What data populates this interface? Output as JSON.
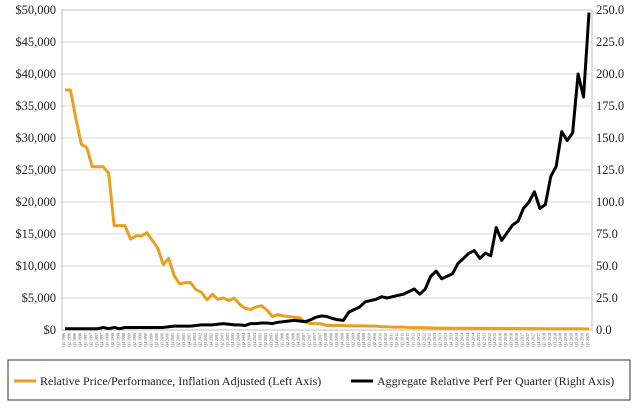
{
  "chart_data": {
    "type": "line",
    "title": "",
    "xlabel": "",
    "ylabel": "",
    "x_tick_labels": [
      "Q1 1996",
      "Q2 1996",
      "Q3 1996",
      "Q4 1996",
      "Q1 1997",
      "Q2 1997",
      "Q3 1997",
      "Q4 1997",
      "Q1 1998",
      "Q2 1998",
      "Q3 1998",
      "Q4 1998",
      "Q1 1999",
      "Q2 1999",
      "Q3 1999",
      "Q4 1999",
      "Q1 2000",
      "Q2 2000",
      "Q3 2000",
      "Q4 2000",
      "Q1 2001",
      "Q2 2001",
      "Q3 2001",
      "Q4 2001",
      "Q1 2002",
      "Q2 2002",
      "Q3 2002",
      "Q4 2002",
      "Q1 2003",
      "Q2 2003",
      "Q3 2003",
      "Q4 2003",
      "Q1 2004",
      "Q2 2004",
      "Q3 2004",
      "Q4 2004",
      "Q1 2005",
      "Q2 2005",
      "Q3 2005",
      "Q4 2005",
      "Q1 2006",
      "Q2 2006",
      "Q3 2006",
      "Q4 2006",
      "Q1 2007",
      "Q2 2007",
      "Q3 2007",
      "Q4 2007",
      "Q1 2008",
      "Q2 2008",
      "Q3 2008",
      "Q4 2008",
      "Q1 2009",
      "Q2 2009",
      "Q3 2009",
      "Q4 2009",
      "Q1 2010",
      "Q2 2010",
      "Q3 2010",
      "Q4 2010",
      "Q1 2011",
      "Q2 2011",
      "Q3 2011",
      "Q4 2011",
      "Q1 2012",
      "Q2 2012",
      "Q3 2012",
      "Q4 2012",
      "Q1 2013",
      "Q2 2013",
      "Q3 2013",
      "Q4 2013",
      "Q1 2014",
      "Q2 2014",
      "Q3 2014",
      "Q4 2014",
      "Q1 2015",
      "Q2 2015",
      "Q3 2015",
      "Q4 2015",
      "Q1 2016",
      "Q2 2016",
      "Q3 2016",
      "Q4 2016",
      "Q1 2017",
      "Q2 2017",
      "Q3 2017",
      "Q4 2017",
      "Q1 2018",
      "Q2 2018",
      "Q3 2018",
      "Q4 2018",
      "Q1 2019",
      "Q2 2019",
      "Q3 2019",
      "Q4 2019",
      "Q1 2020"
    ],
    "y_left": {
      "ylim": [
        0,
        50000
      ],
      "ticks": [
        0,
        5000,
        10000,
        15000,
        20000,
        25000,
        30000,
        35000,
        40000,
        45000,
        50000
      ],
      "tick_labels": [
        "$0",
        "$5,000",
        "$10,000",
        "$15,000",
        "$20,000",
        "$25,000",
        "$30,000",
        "$35,000",
        "$40,000",
        "$45,000",
        "$50,000"
      ]
    },
    "y_right": {
      "ylim": [
        0,
        250
      ],
      "ticks": [
        0,
        25,
        50,
        75,
        100,
        125,
        150,
        175,
        200,
        225,
        250
      ],
      "tick_labels": [
        "0.0",
        "25.0",
        "50.0",
        "75.0",
        "100.0",
        "125.0",
        "150.0",
        "175.0",
        "200.0",
        "225.0",
        "250.0"
      ]
    },
    "grid": true,
    "legend_position": "bottom",
    "series": [
      {
        "name": "Relative Price/Performance, Inflation Adjusted (Left Axis)",
        "axis": "left",
        "color": "#E8A021",
        "values": [
          37500,
          37500,
          33000,
          29000,
          28500,
          25500,
          25500,
          25500,
          24500,
          16300,
          16300,
          16300,
          14200,
          14700,
          14700,
          15200,
          14000,
          12800,
          10200,
          11200,
          8500,
          7200,
          7400,
          7400,
          6300,
          5900,
          4700,
          5600,
          4800,
          5000,
          4600,
          5000,
          4000,
          3400,
          3200,
          3600,
          3800,
          3100,
          2100,
          2400,
          2200,
          2100,
          2000,
          1900,
          1200,
          1000,
          1000,
          950,
          700,
          700,
          700,
          700,
          650,
          650,
          650,
          650,
          600,
          600,
          500,
          500,
          450,
          450,
          450,
          400,
          380,
          380,
          350,
          330,
          300,
          300,
          300,
          280,
          280,
          280,
          280,
          260,
          250,
          250,
          250,
          240,
          240,
          240,
          230,
          230,
          220,
          220,
          210,
          210,
          200,
          200,
          200,
          200,
          190,
          190,
          190,
          180,
          180
        ]
      },
      {
        "name": "Aggregate Relative Perf Per Quarter (Right Axis)",
        "axis": "right",
        "color": "#000000",
        "values": [
          1,
          1,
          1,
          1,
          1,
          1,
          1,
          2,
          1,
          2,
          1,
          2,
          2,
          2,
          2,
          2,
          2,
          2,
          2,
          2.5,
          3,
          3,
          3,
          3,
          3.5,
          4,
          4,
          4,
          4.5,
          5,
          4.5,
          4,
          4,
          3.5,
          5,
          5,
          5.5,
          5.5,
          5,
          6,
          6.5,
          7,
          7.5,
          7,
          6.5,
          8,
          10,
          11,
          10.5,
          9,
          8,
          7.5,
          14,
          16,
          18,
          22,
          23,
          24,
          26,
          25,
          26,
          27,
          28,
          30,
          32,
          28,
          32,
          42,
          46,
          40,
          42,
          44,
          52,
          56,
          60,
          62,
          56,
          60,
          58,
          80,
          70,
          76,
          82,
          85,
          95,
          100,
          108,
          95,
          98,
          120,
          128,
          155,
          148,
          154,
          200,
          182,
          248
        ]
      }
    ]
  }
}
